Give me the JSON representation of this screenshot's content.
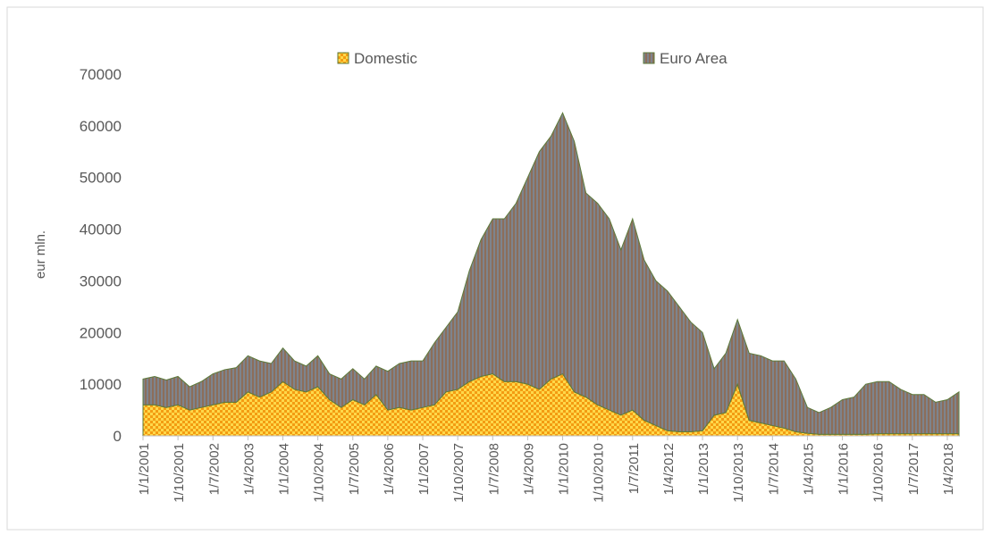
{
  "chart_data": {
    "type": "stacked-area",
    "y_label": "eur mln.",
    "categories": [
      "1/1/2001",
      null,
      null,
      "1/10/2001",
      null,
      null,
      "1/7/2002",
      null,
      null,
      "1/4/2003",
      null,
      null,
      "1/1/2004",
      null,
      null,
      "1/10/2004",
      null,
      null,
      "1/7/2005",
      null,
      null,
      "1/4/2006",
      null,
      null,
      "1/1/2007",
      null,
      null,
      "1/10/2007",
      null,
      null,
      "1/7/2008",
      null,
      null,
      "1/4/2009",
      null,
      null,
      "1/1/2010",
      null,
      null,
      "1/10/2010",
      null,
      null,
      "1/7/2011",
      null,
      null,
      "1/4/2012",
      null,
      null,
      "1/1/2013",
      null,
      null,
      "1/10/2013",
      null,
      null,
      "1/7/2014",
      null,
      null,
      "1/4/2015",
      null,
      null,
      "1/1/2016",
      null,
      null,
      "1/10/2016",
      null,
      null,
      "1/7/2017",
      null,
      null,
      "1/4/2018",
      null
    ],
    "series": [
      {
        "name": "Domestic",
        "color": "#f39c12",
        "values": [
          6000,
          6000,
          5500,
          6000,
          5000,
          5500,
          6000,
          6500,
          6500,
          8500,
          7500,
          8500,
          10500,
          9000,
          8500,
          9500,
          7000,
          5500,
          7000,
          6000,
          8000,
          5000,
          5500,
          5000,
          5500,
          6000,
          8500,
          9000,
          10500,
          11500,
          12000,
          10500,
          10500,
          10000,
          9000,
          11000,
          12000,
          8500,
          7500,
          6000,
          5000,
          4000,
          5000,
          3000,
          2000,
          1000,
          800,
          800,
          1000,
          4000,
          4500,
          10000,
          3000,
          2500,
          2000,
          1500,
          800,
          500,
          300,
          300,
          300,
          300,
          300,
          400,
          400,
          400,
          400,
          400,
          400,
          400,
          400
        ]
      },
      {
        "name": "Euro Area",
        "color": "#8c6e5a",
        "values": [
          5000,
          5500,
          5300,
          5500,
          4500,
          5000,
          6000,
          6300,
          6700,
          7000,
          7000,
          5500,
          6500,
          5500,
          5000,
          6000,
          5000,
          5500,
          6000,
          5000,
          5500,
          7500,
          8500,
          9500,
          9000,
          12000,
          12500,
          15000,
          21500,
          26500,
          30000,
          31500,
          34500,
          40000,
          46000,
          47000,
          50500,
          48500,
          39500,
          39000,
          37000,
          32000,
          37000,
          31000,
          28000,
          27000,
          24200,
          21200,
          19000,
          9000,
          11500,
          12500,
          13000,
          13000,
          12500,
          13000,
          10200,
          5000,
          4200,
          5200,
          6700,
          7200,
          9700,
          10100,
          10100,
          8600,
          7600,
          7600,
          6100,
          6600,
          8100
        ]
      }
    ],
    "ylim": [
      0,
      70000
    ],
    "yticks": [
      0,
      10000,
      20000,
      30000,
      40000,
      50000,
      60000,
      70000
    ],
    "grid": false,
    "legend": "top"
  }
}
